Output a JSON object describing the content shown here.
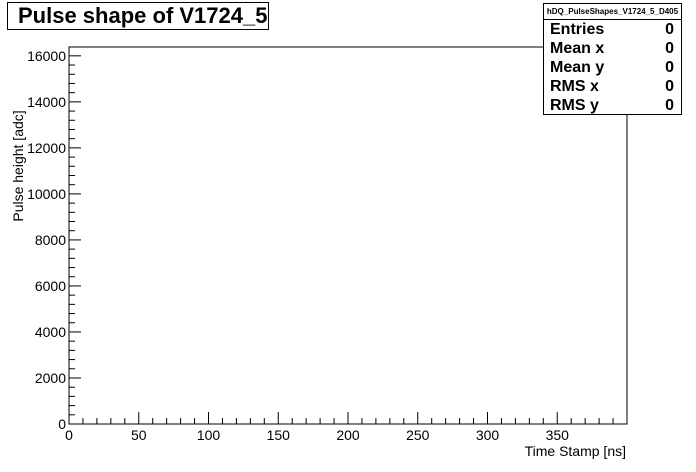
{
  "chart_data": {
    "type": "scatter",
    "title": "Pulse shape of V1724_5",
    "xlabel": "Time Stamp [ns]",
    "ylabel": "Pulse height [adc]",
    "xlim": [
      0,
      400
    ],
    "ylim": [
      0,
      16384
    ],
    "x_ticks": [
      "0",
      "50",
      "100",
      "150",
      "200",
      "250",
      "300",
      "350"
    ],
    "y_ticks": [
      "0",
      "2000",
      "4000",
      "6000",
      "8000",
      "10000",
      "12000",
      "14000",
      "16000"
    ],
    "x_tick_values": [
      0,
      50,
      100,
      150,
      200,
      250,
      300,
      350
    ],
    "y_tick_values": [
      0,
      2000,
      4000,
      6000,
      8000,
      10000,
      12000,
      14000,
      16000
    ],
    "series": [
      {
        "values": []
      }
    ],
    "grid": false
  },
  "stats": {
    "name": "hDQ_PulseShapes_V1724_5_D405",
    "rows": [
      {
        "label": "Entries",
        "value": "0"
      },
      {
        "label": "Mean x",
        "value": "0"
      },
      {
        "label": "Mean y",
        "value": "0"
      },
      {
        "label": "RMS x",
        "value": "0"
      },
      {
        "label": "RMS y",
        "value": "0"
      }
    ]
  }
}
